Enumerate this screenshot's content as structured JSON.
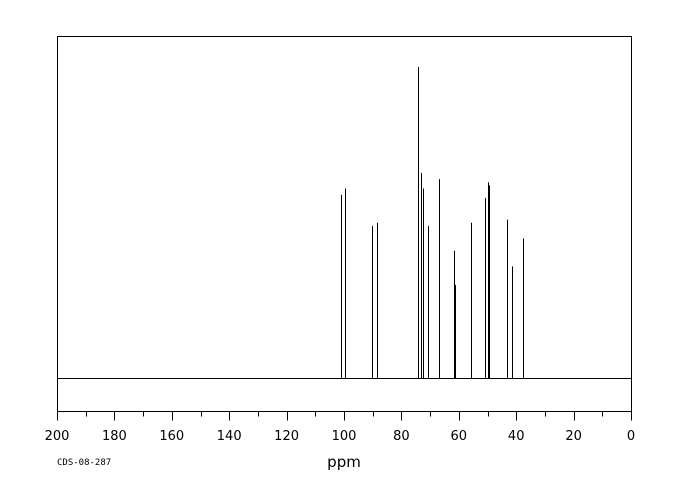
{
  "chart_data": {
    "type": "line",
    "title": "",
    "xlabel": "ppm",
    "ylabel": "",
    "xlim": [
      200,
      0
    ],
    "x_reversed": true,
    "xticks": [
      200,
      180,
      160,
      140,
      120,
      100,
      80,
      60,
      40,
      20,
      0
    ],
    "grid": false,
    "legend": "none",
    "line_color": "#000000",
    "peaks": [
      {
        "x": 101.0,
        "y": 0.59
      },
      {
        "x": 99.7,
        "y": 0.61
      },
      {
        "x": 90.3,
        "y": 0.49
      },
      {
        "x": 88.5,
        "y": 0.5
      },
      {
        "x": 74.3,
        "y": 1.0
      },
      {
        "x": 73.1,
        "y": 0.66
      },
      {
        "x": 72.6,
        "y": 0.61
      },
      {
        "x": 70.6,
        "y": 0.49
      },
      {
        "x": 66.9,
        "y": 0.64
      },
      {
        "x": 61.5,
        "y": 0.41
      },
      {
        "x": 61.3,
        "y": 0.3
      },
      {
        "x": 55.9,
        "y": 0.5
      },
      {
        "x": 50.7,
        "y": 0.58
      },
      {
        "x": 49.9,
        "y": 0.63
      },
      {
        "x": 49.5,
        "y": 0.62
      },
      {
        "x": 43.2,
        "y": 0.51
      },
      {
        "x": 41.4,
        "y": 0.36
      },
      {
        "x": 37.6,
        "y": 0.45
      }
    ]
  },
  "footnote": "CDS-08-287"
}
